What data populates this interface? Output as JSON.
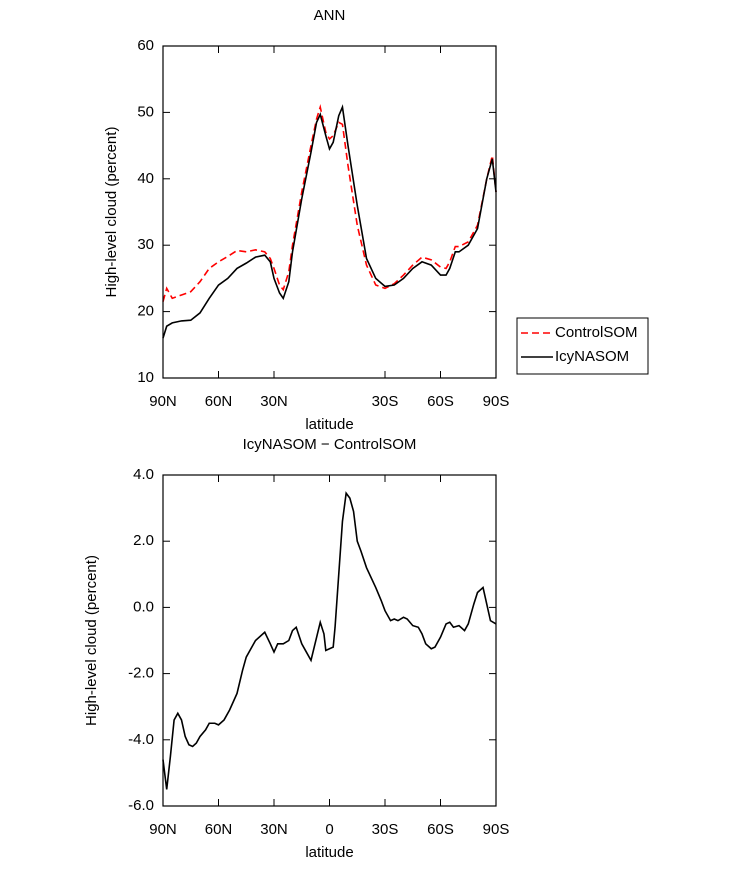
{
  "chart_data": [
    {
      "type": "line",
      "title": "ANN",
      "xlabel": "latitude",
      "ylabel": "High-level cloud (percent)",
      "x": [
        90,
        88,
        85,
        80,
        75,
        70,
        65,
        60,
        55,
        50,
        45,
        40,
        35,
        32,
        30,
        27,
        25,
        22,
        20,
        15,
        10,
        7,
        5,
        2,
        0,
        -2,
        -5,
        -7,
        -10,
        -15,
        -20,
        -25,
        -30,
        -35,
        -40,
        -45,
        -50,
        -55,
        -60,
        -63,
        -65,
        -68,
        -70,
        -75,
        -80,
        -85,
        -88,
        -90
      ],
      "series": [
        {
          "name": "ControlSOM",
          "color": "#ff0000",
          "linestyle": "dashed",
          "values": [
            21.5,
            23.5,
            22,
            22.5,
            23,
            24.5,
            26.5,
            27.5,
            28.3,
            29.2,
            29,
            29.3,
            29,
            28,
            26.5,
            24,
            23.3,
            26,
            30,
            38,
            45,
            49,
            50.8,
            47,
            46,
            46.5,
            48.5,
            48.2,
            42,
            33,
            27,
            24,
            23.5,
            24.2,
            25.5,
            27,
            28.2,
            27.8,
            26.7,
            26.5,
            27.5,
            29.8,
            29.8,
            30.5,
            33,
            40,
            43.5,
            38
          ]
        },
        {
          "name": "IcyNASOM",
          "color": "#000000",
          "linestyle": "solid",
          "values": [
            16,
            17.8,
            18.3,
            18.6,
            18.7,
            19.8,
            22,
            24,
            25,
            26.5,
            27.3,
            28.2,
            28.5,
            27.5,
            25,
            22.8,
            22,
            24.5,
            29,
            37,
            44,
            48.5,
            49.7,
            46.5,
            44.5,
            45.5,
            49.5,
            50.8,
            45,
            36,
            28,
            25,
            23.8,
            24,
            25,
            26.5,
            27.5,
            27,
            25.5,
            25.5,
            26.5,
            29,
            29,
            30,
            32.5,
            40,
            43,
            38
          ]
        }
      ],
      "xlim": [
        90,
        -90
      ],
      "xticks": [
        {
          "value": 90,
          "label": "90N"
        },
        {
          "value": 60,
          "label": "60N"
        },
        {
          "value": 30,
          "label": "30N"
        },
        {
          "value": -30,
          "label": "30S"
        },
        {
          "value": -60,
          "label": "60S"
        },
        {
          "value": -90,
          "label": "90S"
        }
      ],
      "ylim": [
        10,
        60
      ],
      "yticks": [
        10,
        20,
        30,
        40,
        50,
        60
      ],
      "legend": "right"
    },
    {
      "type": "line",
      "title": "IcyNASOM − ControlSOM",
      "xlabel": "latitude",
      "ylabel": "High-level cloud (percent)",
      "x": [
        90,
        88,
        86,
        84,
        82,
        80,
        78,
        76,
        74,
        72,
        70,
        67,
        65,
        62,
        60,
        57,
        54,
        50,
        47,
        45,
        40,
        35,
        32,
        30,
        28,
        25,
        22,
        20,
        18,
        15,
        13,
        10,
        5,
        3,
        2,
        0,
        -2,
        -3,
        -5,
        -7,
        -9,
        -11,
        -13,
        -15,
        -17,
        -20,
        -25,
        -28,
        -30,
        -33,
        -35,
        -37,
        -40,
        -42,
        -45,
        -48,
        -50,
        -52,
        -55,
        -57,
        -60,
        -63,
        -65,
        -67,
        -70,
        -73,
        -75,
        -78,
        -80,
        -83,
        -85,
        -87,
        -90
      ],
      "series": [
        {
          "name": "IcyNASOM − ControlSOM",
          "color": "#000000",
          "linestyle": "solid",
          "values": [
            -4.6,
            -5.5,
            -4.5,
            -3.4,
            -3.2,
            -3.4,
            -3.9,
            -4.15,
            -4.2,
            -4.1,
            -3.9,
            -3.7,
            -3.5,
            -3.5,
            -3.55,
            -3.4,
            -3.1,
            -2.6,
            -1.9,
            -1.5,
            -1.0,
            -0.75,
            -1.1,
            -1.35,
            -1.1,
            -1.1,
            -1.0,
            -0.7,
            -0.6,
            -1.1,
            -1.3,
            -1.6,
            -0.45,
            -0.8,
            -1.3,
            -1.25,
            -1.2,
            -0.6,
            1.0,
            2.6,
            3.45,
            3.3,
            2.9,
            2.0,
            1.7,
            1.2,
            0.6,
            0.2,
            -0.1,
            -0.4,
            -0.35,
            -0.4,
            -0.3,
            -0.35,
            -0.55,
            -0.6,
            -0.8,
            -1.1,
            -1.25,
            -1.2,
            -0.9,
            -0.5,
            -0.45,
            -0.6,
            -0.55,
            -0.7,
            -0.5,
            0.1,
            0.45,
            0.6,
            0.1,
            -0.4,
            -0.5
          ]
        }
      ],
      "xlim": [
        90,
        -90
      ],
      "xticks": [
        {
          "value": 90,
          "label": "90N"
        },
        {
          "value": 60,
          "label": "60N"
        },
        {
          "value": 30,
          "label": "30N"
        },
        0,
        {
          "value": -30,
          "label": "30S"
        },
        {
          "value": -60,
          "label": "60S"
        },
        {
          "value": -90,
          "label": "90S"
        }
      ],
      "ylim": [
        -6,
        4
      ],
      "yticks": [
        {
          "value": -6,
          "label": "-6.0"
        },
        {
          "value": -4,
          "label": "-4.0"
        },
        {
          "value": -2,
          "label": "-2.0"
        },
        {
          "value": 0,
          "label": "0.0"
        },
        {
          "value": 2,
          "label": "2.0"
        },
        {
          "value": 4,
          "label": "4.0"
        }
      ]
    }
  ]
}
